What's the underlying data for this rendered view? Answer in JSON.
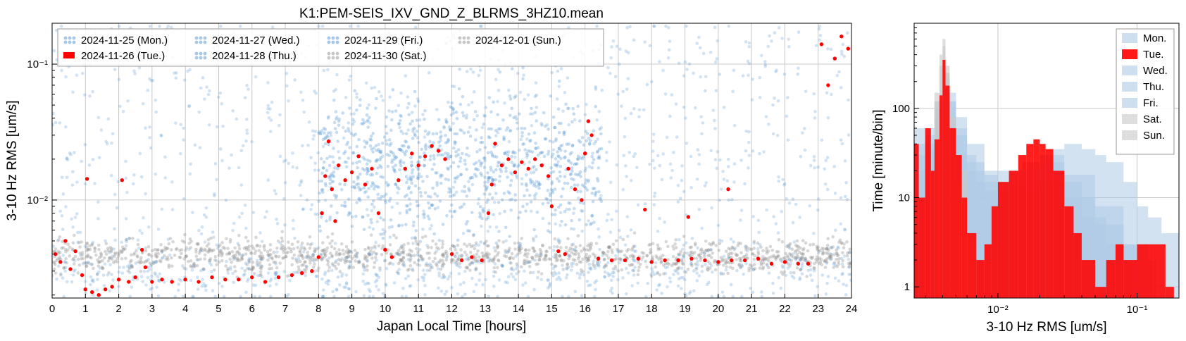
{
  "chart_data": [
    {
      "type": "scatter",
      "title": "K1:PEM-SEIS_IXV_GND_Z_BLRMS_3HZ10.mean",
      "xlabel": "Japan Local Time [hours]",
      "ylabel": "3-10 Hz RMS [um/s]",
      "xlim": [
        0,
        24
      ],
      "ylim": [
        0.0019,
        0.2
      ],
      "yscale": "log",
      "grid": true,
      "legend_placement": "top-left",
      "x_ticks": [
        "0",
        "1",
        "2",
        "3",
        "4",
        "5",
        "6",
        "7",
        "8",
        "9",
        "10",
        "11",
        "12",
        "13",
        "14",
        "15",
        "16",
        "17",
        "18",
        "19",
        "20",
        "21",
        "22",
        "23",
        "24"
      ],
      "y_ticks": [
        {
          "value": 0.01,
          "label": "10⁻²"
        },
        {
          "value": 0.1,
          "label": "10⁻¹"
        }
      ],
      "series": [
        {
          "name": "2024-11-25 (Mon.)",
          "color": "#5b9bd5",
          "marker": "dots",
          "profile": "blue"
        },
        {
          "name": "2024-11-26 (Tue.)",
          "color": "#ff0000",
          "marker": "dots",
          "profile": "red",
          "points": [
            [
              0.1,
              0.004
            ],
            [
              0.25,
              0.0035
            ],
            [
              0.4,
              0.005
            ],
            [
              0.55,
              0.0031
            ],
            [
              0.7,
              0.0042
            ],
            [
              0.9,
              0.0028
            ],
            [
              1.0,
              0.0022
            ],
            [
              1.05,
              0.0143
            ],
            [
              1.2,
              0.0021
            ],
            [
              1.4,
              0.002
            ],
            [
              1.6,
              0.0022
            ],
            [
              1.8,
              0.0023
            ],
            [
              2.0,
              0.0026
            ],
            [
              2.1,
              0.014
            ],
            [
              2.3,
              0.0025
            ],
            [
              2.5,
              0.0027
            ],
            [
              2.7,
              0.0043
            ],
            [
              2.8,
              0.0032
            ],
            [
              3.0,
              0.0025
            ],
            [
              3.3,
              0.0026
            ],
            [
              3.6,
              0.0025
            ],
            [
              4.0,
              0.0026
            ],
            [
              4.4,
              0.0025
            ],
            [
              4.8,
              0.0027
            ],
            [
              5.2,
              0.0026
            ],
            [
              5.6,
              0.0026
            ],
            [
              6.0,
              0.0027
            ],
            [
              6.4,
              0.0025
            ],
            [
              6.8,
              0.0027
            ],
            [
              7.2,
              0.0028
            ],
            [
              7.5,
              0.0029
            ],
            [
              7.8,
              0.003
            ],
            [
              8.0,
              0.0038
            ],
            [
              8.1,
              0.008
            ],
            [
              8.2,
              0.015
            ],
            [
              8.3,
              0.027
            ],
            [
              8.4,
              0.012
            ],
            [
              8.5,
              0.007
            ],
            [
              8.6,
              0.018
            ],
            [
              8.8,
              0.014
            ],
            [
              9.0,
              0.016
            ],
            [
              9.2,
              0.021
            ],
            [
              9.4,
              0.013
            ],
            [
              9.6,
              0.017
            ],
            [
              9.8,
              0.008
            ],
            [
              10.0,
              0.0043
            ],
            [
              10.2,
              0.0038
            ],
            [
              10.4,
              0.014
            ],
            [
              10.6,
              0.017
            ],
            [
              10.8,
              0.022
            ],
            [
              11.0,
              0.018
            ],
            [
              11.2,
              0.021
            ],
            [
              11.4,
              0.025
            ],
            [
              11.6,
              0.023
            ],
            [
              11.8,
              0.02
            ],
            [
              12.0,
              0.004
            ],
            [
              12.3,
              0.0036
            ],
            [
              12.6,
              0.0038
            ],
            [
              12.9,
              0.0036
            ],
            [
              13.1,
              0.008
            ],
            [
              13.2,
              0.013
            ],
            [
              13.3,
              0.026
            ],
            [
              13.5,
              0.018
            ],
            [
              13.7,
              0.02
            ],
            [
              13.9,
              0.016
            ],
            [
              14.1,
              0.019
            ],
            [
              14.3,
              0.017
            ],
            [
              14.5,
              0.02
            ],
            [
              14.7,
              0.018
            ],
            [
              14.9,
              0.015
            ],
            [
              15.0,
              0.009
            ],
            [
              15.2,
              0.0042
            ],
            [
              15.4,
              0.004
            ],
            [
              15.5,
              0.017
            ],
            [
              15.7,
              0.012
            ],
            [
              15.9,
              0.01
            ],
            [
              16.0,
              0.022
            ],
            [
              16.1,
              0.038
            ],
            [
              16.2,
              0.03
            ],
            [
              16.4,
              0.0037
            ],
            [
              16.8,
              0.0036
            ],
            [
              17.2,
              0.0036
            ],
            [
              17.6,
              0.0037
            ],
            [
              18.0,
              0.0035
            ],
            [
              18.4,
              0.0036
            ],
            [
              18.8,
              0.0036
            ],
            [
              19.2,
              0.0037
            ],
            [
              19.6,
              0.0036
            ],
            [
              20.0,
              0.0035
            ],
            [
              20.4,
              0.0036
            ],
            [
              20.8,
              0.0036
            ],
            [
              21.2,
              0.0037
            ],
            [
              21.6,
              0.0034
            ],
            [
              22.0,
              0.0035
            ],
            [
              22.4,
              0.0034
            ],
            [
              22.7,
              0.0034
            ],
            [
              23.1,
              0.14
            ],
            [
              23.3,
              0.07
            ],
            [
              23.5,
              0.11
            ],
            [
              23.7,
              0.16
            ],
            [
              23.9,
              0.13
            ],
            [
              17.8,
              0.0085
            ],
            [
              19.1,
              0.0075
            ],
            [
              20.3,
              0.012
            ]
          ]
        },
        {
          "name": "2024-11-27 (Wed.)",
          "color": "#5b9bd5",
          "marker": "dots",
          "profile": "blue"
        },
        {
          "name": "2024-11-28 (Thu.)",
          "color": "#5b9bd5",
          "marker": "dots",
          "profile": "blue"
        },
        {
          "name": "2024-11-29 (Fri.)",
          "color": "#5b9bd5",
          "marker": "dots",
          "profile": "blue"
        },
        {
          "name": "2024-11-30 (Sat.)",
          "color": "#999999",
          "marker": "dots",
          "profile": "gray"
        },
        {
          "name": "2024-12-01 (Sun.)",
          "color": "#999999",
          "marker": "dots",
          "profile": "gray"
        }
      ]
    },
    {
      "type": "bar",
      "xlabel": "3-10 Hz RMS [um/s]",
      "ylabel": "Time [minute/bin]",
      "xscale": "log",
      "yscale": "log",
      "xlim": [
        0.0025,
        0.2
      ],
      "ylim": [
        0.75,
        900
      ],
      "grid": true,
      "legend_placement": "top-right",
      "x_ticks": [
        {
          "value": 0.01,
          "label": "10⁻²"
        },
        {
          "value": 0.1,
          "label": "10⁻¹"
        }
      ],
      "y_ticks": [
        {
          "value": 1,
          "label": "1"
        },
        {
          "value": 10,
          "label": "10"
        },
        {
          "value": 100,
          "label": "100"
        }
      ],
      "series": [
        {
          "name": "Mon.",
          "color": "#aecbe6",
          "opacity": 0.55,
          "points": [
            [
              0.0025,
              60
            ],
            [
              0.003,
              35
            ],
            [
              0.0035,
              40
            ],
            [
              0.004,
              120
            ],
            [
              0.0045,
              60
            ],
            [
              0.005,
              30
            ],
            [
              0.006,
              20
            ],
            [
              0.007,
              15
            ],
            [
              0.008,
              12
            ],
            [
              0.01,
              15
            ],
            [
              0.012,
              20
            ],
            [
              0.015,
              25
            ],
            [
              0.02,
              30
            ],
            [
              0.025,
              35
            ],
            [
              0.03,
              40
            ],
            [
              0.04,
              35
            ],
            [
              0.05,
              30
            ],
            [
              0.06,
              25
            ],
            [
              0.08,
              15
            ],
            [
              0.1,
              8
            ],
            [
              0.12,
              6
            ],
            [
              0.15,
              4
            ],
            [
              0.2,
              2
            ]
          ]
        },
        {
          "name": "Tue.",
          "color": "#ff0000",
          "opacity": 0.88,
          "points": [
            [
              0.0025,
              40
            ],
            [
              0.0027,
              10
            ],
            [
              0.003,
              60
            ],
            [
              0.0033,
              20
            ],
            [
              0.0035,
              45
            ],
            [
              0.0038,
              140
            ],
            [
              0.004,
              350
            ],
            [
              0.0042,
              180
            ],
            [
              0.0045,
              60
            ],
            [
              0.005,
              30
            ],
            [
              0.0055,
              10
            ],
            [
              0.006,
              4
            ],
            [
              0.007,
              2
            ],
            [
              0.008,
              3
            ],
            [
              0.009,
              8
            ],
            [
              0.01,
              15
            ],
            [
              0.012,
              20
            ],
            [
              0.014,
              30
            ],
            [
              0.016,
              40
            ],
            [
              0.018,
              45
            ],
            [
              0.02,
              40
            ],
            [
              0.022,
              35
            ],
            [
              0.025,
              20
            ],
            [
              0.03,
              8
            ],
            [
              0.035,
              4
            ],
            [
              0.04,
              2
            ],
            [
              0.05,
              1
            ],
            [
              0.06,
              2
            ],
            [
              0.07,
              3
            ],
            [
              0.08,
              2
            ],
            [
              0.1,
              3
            ],
            [
              0.13,
              3
            ],
            [
              0.16,
              1
            ]
          ]
        },
        {
          "name": "Wed.",
          "color": "#aecbe6",
          "opacity": 0.55,
          "points": [
            [
              0.0025,
              40
            ],
            [
              0.003,
              60
            ],
            [
              0.0035,
              120
            ],
            [
              0.004,
              250
            ],
            [
              0.0045,
              120
            ],
            [
              0.005,
              60
            ],
            [
              0.006,
              30
            ],
            [
              0.007,
              20
            ],
            [
              0.008,
              15
            ],
            [
              0.01,
              12
            ],
            [
              0.012,
              15
            ],
            [
              0.015,
              20
            ],
            [
              0.02,
              25
            ],
            [
              0.03,
              15
            ],
            [
              0.04,
              6
            ],
            [
              0.06,
              3
            ],
            [
              0.1,
              1
            ]
          ]
        },
        {
          "name": "Thu.",
          "color": "#aecbe6",
          "opacity": 0.55,
          "points": [
            [
              0.0025,
              20
            ],
            [
              0.003,
              40
            ],
            [
              0.0035,
              80
            ],
            [
              0.004,
              180
            ],
            [
              0.0045,
              150
            ],
            [
              0.005,
              80
            ],
            [
              0.006,
              40
            ],
            [
              0.008,
              20
            ],
            [
              0.01,
              15
            ],
            [
              0.015,
              12
            ],
            [
              0.02,
              15
            ],
            [
              0.03,
              10
            ],
            [
              0.05,
              5
            ],
            [
              0.08,
              2
            ]
          ]
        },
        {
          "name": "Fri.",
          "color": "#aecbe6",
          "opacity": 0.55,
          "points": [
            [
              0.0025,
              30
            ],
            [
              0.003,
              50
            ],
            [
              0.0035,
              100
            ],
            [
              0.004,
              220
            ],
            [
              0.0045,
              120
            ],
            [
              0.005,
              50
            ],
            [
              0.006,
              25
            ],
            [
              0.008,
              18
            ],
            [
              0.01,
              20
            ],
            [
              0.015,
              25
            ],
            [
              0.02,
              30
            ],
            [
              0.03,
              18
            ],
            [
              0.05,
              8
            ],
            [
              0.08,
              3
            ],
            [
              0.12,
              2
            ]
          ]
        },
        {
          "name": "Sat.",
          "color": "#c8c8c8",
          "opacity": 0.6,
          "points": [
            [
              0.0035,
              150
            ],
            [
              0.0038,
              400
            ],
            [
              0.004,
              600
            ],
            [
              0.0042,
              300
            ],
            [
              0.0045,
              80
            ],
            [
              0.005,
              20
            ],
            [
              0.006,
              4
            ]
          ]
        },
        {
          "name": "Sun.",
          "color": "#c8c8c8",
          "opacity": 0.6,
          "points": [
            [
              0.0035,
              120
            ],
            [
              0.0038,
              300
            ],
            [
              0.004,
              500
            ],
            [
              0.0042,
              250
            ],
            [
              0.0045,
              60
            ],
            [
              0.005,
              15
            ],
            [
              0.006,
              3
            ]
          ]
        }
      ]
    }
  ]
}
